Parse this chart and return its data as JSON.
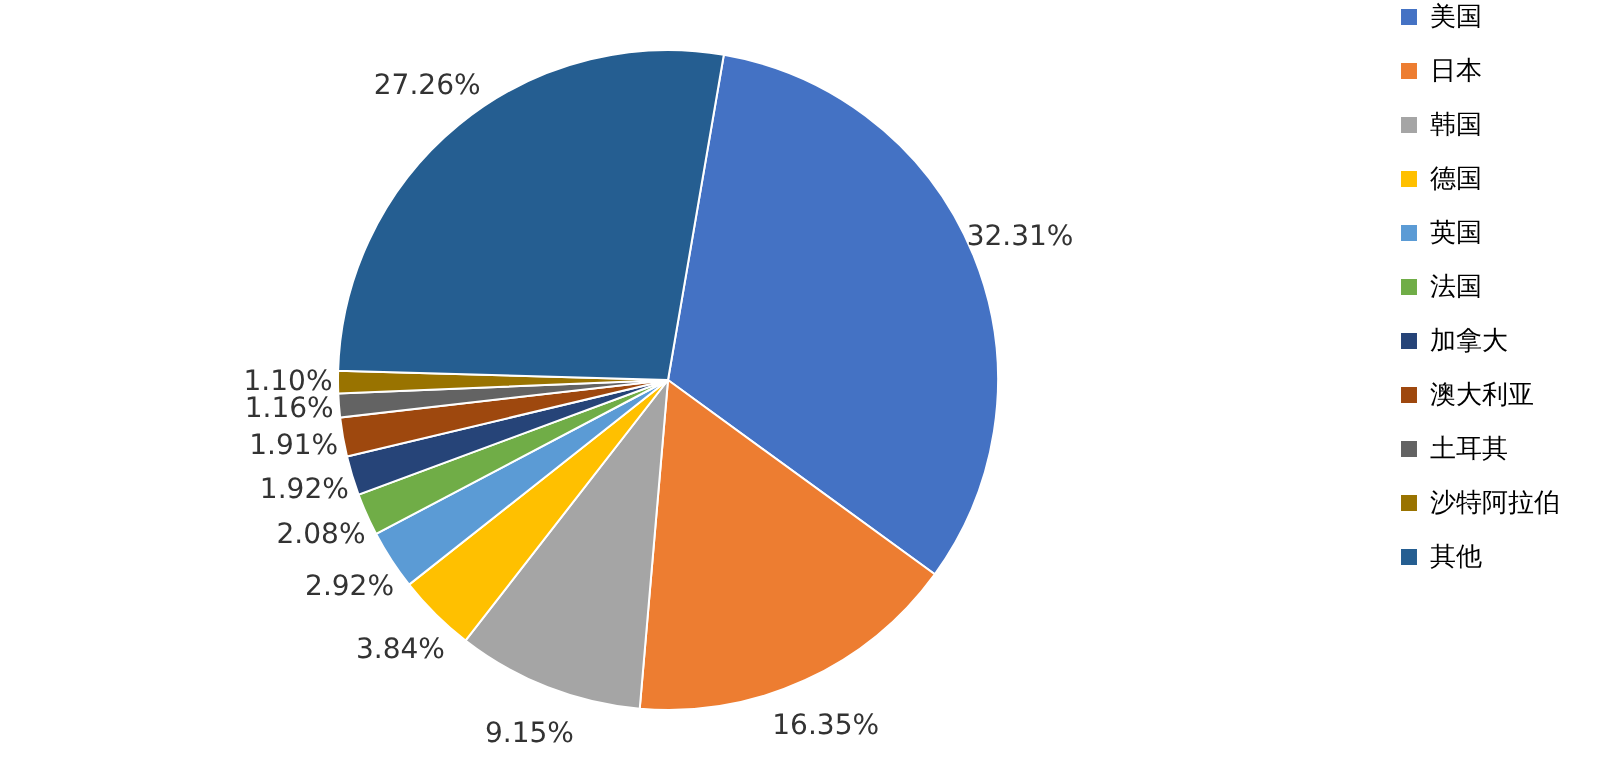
{
  "chart_data": {
    "type": "pie",
    "categories": [
      "美国",
      "日本",
      "韩国",
      "德国",
      "英国",
      "法国",
      "加拿大",
      "澳大利亚",
      "土耳其",
      "沙特阿拉伯",
      "其他"
    ],
    "values": [
      32.31,
      16.35,
      9.15,
      3.84,
      2.92,
      2.08,
      1.92,
      1.91,
      1.16,
      1.1,
      27.26
    ],
    "value_labels": [
      "32.31%",
      "16.35%",
      "9.15%",
      "3.84%",
      "2.92%",
      "2.08%",
      "1.92%",
      "1.91%",
      "1.16%",
      "1.10%",
      "27.26%"
    ],
    "colors": [
      "#4472c4",
      "#ed7d31",
      "#a5a5a5",
      "#ffc000",
      "#5b9bd5",
      "#70ad47",
      "#264478",
      "#9e480e",
      "#636363",
      "#997300",
      "#255e91"
    ],
    "legend": "right"
  }
}
